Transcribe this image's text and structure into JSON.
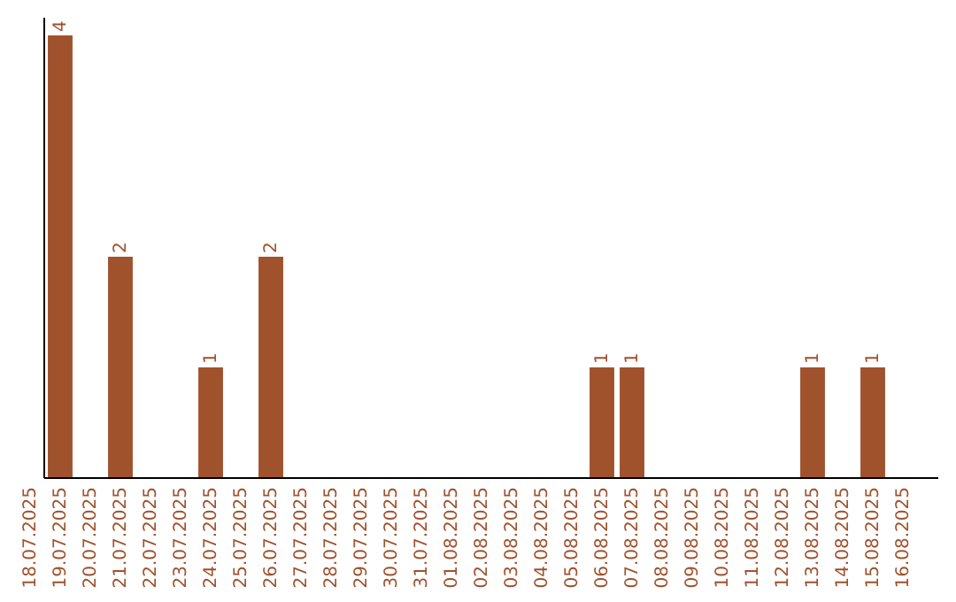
{
  "chart_data": {
    "type": "bar",
    "categories": [
      "18.07.2025",
      "19.07.2025",
      "20.07.2025",
      "21.07.2025",
      "22.07.2025",
      "23.07.2025",
      "24.07.2025",
      "25.07.2025",
      "26.07.2025",
      "27.07.2025",
      "28.07.2025",
      "29.07.2025",
      "30.07.2025",
      "31.07.2025",
      "01.08.2025",
      "02.08.2025",
      "03.08.2025",
      "04.08.2025",
      "05.08.2025",
      "06.08.2025",
      "07.08.2025",
      "08.08.2025",
      "09.08.2025",
      "10.08.2025",
      "11.08.2025",
      "12.08.2025",
      "13.08.2025",
      "14.08.2025",
      "15.08.2025",
      "16.08.2025"
    ],
    "values": [
      0,
      4,
      0,
      2,
      0,
      0,
      1,
      0,
      2,
      0,
      0,
      0,
      0,
      0,
      0,
      0,
      0,
      0,
      0,
      1,
      1,
      0,
      0,
      0,
      0,
      0,
      1,
      0,
      1,
      0
    ],
    "value_labels": [
      null,
      "4",
      null,
      "2",
      null,
      null,
      "1",
      null,
      "2",
      null,
      null,
      null,
      null,
      null,
      null,
      null,
      null,
      null,
      null,
      "1",
      "1",
      null,
      null,
      null,
      null,
      null,
      "1",
      null,
      "1",
      null
    ],
    "color": "#a0522d"
  }
}
